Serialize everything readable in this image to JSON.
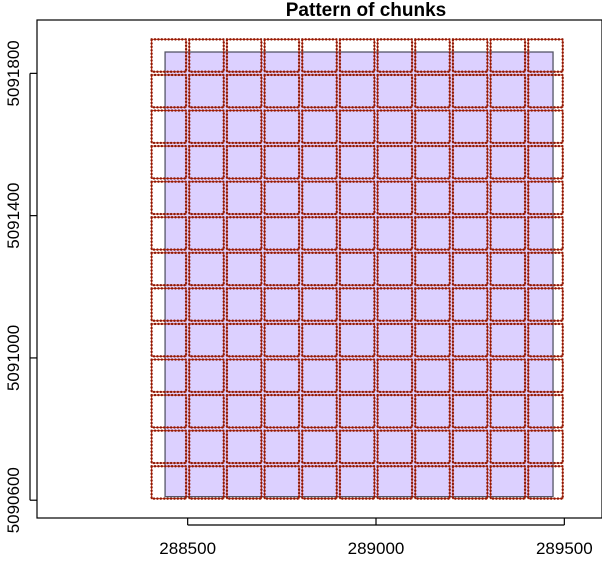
{
  "chart_data": {
    "type": "map",
    "title": "Pattern of chunks",
    "xlabel": "",
    "ylabel": "",
    "xlim": [
      288100,
      289600
    ],
    "ylim": [
      5090550,
      5091950
    ],
    "x_ticks": [
      288500,
      289000,
      289500
    ],
    "y_ticks": [
      5090600,
      5091000,
      5091400,
      5091800
    ],
    "x_tick_labels": [
      "288500",
      "289000",
      "289500"
    ],
    "y_tick_labels": [
      "5090600",
      "5091000",
      "5091400",
      "5091800"
    ],
    "grid": false,
    "extent": {
      "xmin": 288440,
      "xmax": 289470,
      "ymin": 5090610,
      "ymax": 5091860,
      "fill": "#dcd0ff",
      "stroke": "#555566"
    },
    "chunks": {
      "x_breaks": [
        288400,
        288500,
        288600,
        288700,
        288800,
        288900,
        289000,
        289100,
        289200,
        289300,
        289400,
        289500
      ],
      "y_breaks": [
        5090600,
        5090700,
        5090800,
        5090900,
        5091000,
        5091100,
        5091200,
        5091300,
        5091400,
        5091500,
        5091600,
        5091700,
        5091800,
        5091900
      ],
      "outline_color": "#d93a16",
      "bead_color": "#8b1a08"
    }
  }
}
